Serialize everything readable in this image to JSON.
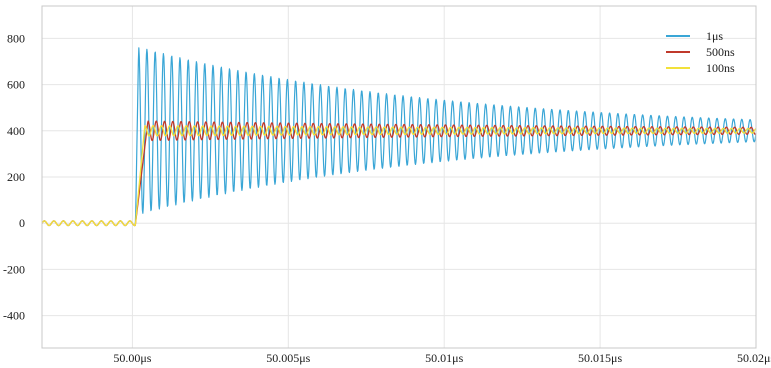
{
  "chart_data": {
    "type": "line",
    "title": "",
    "xlabel": "",
    "ylabel": "",
    "x_unit": "μs",
    "xlim": [
      49.9971,
      50.02
    ],
    "ylim": [
      -540,
      940
    ],
    "grid": true,
    "legend_position": "top-right",
    "x_ticks": [
      {
        "value": 50.0,
        "label": "50.00μs"
      },
      {
        "value": 50.005,
        "label": "50.005μs"
      },
      {
        "value": 50.01,
        "label": "50.01μs"
      },
      {
        "value": 50.015,
        "label": "50.015μs"
      },
      {
        "value": 50.02,
        "label": "50.02μs"
      }
    ],
    "y_ticks": [
      {
        "value": 800,
        "label": "800"
      },
      {
        "value": 600,
        "label": "600"
      },
      {
        "value": 400,
        "label": "400"
      },
      {
        "value": 200,
        "label": "200"
      },
      {
        "value": 0,
        "label": "0"
      },
      {
        "value": -200,
        "label": "-200"
      },
      {
        "value": -400,
        "label": "-400"
      }
    ],
    "series": [
      {
        "name": "1μs",
        "color": "#3aa6d6",
        "pre_step_level": 0,
        "pre_step_ripple_amplitude": 10,
        "step_start_x": 50.0001,
        "step_peak_x": 50.0002,
        "settled_level": 400,
        "first_peak": 770,
        "first_trough": 45,
        "oscillation_period": 0.000265,
        "end_peak": 450,
        "end_trough": 355
      },
      {
        "name": "500ns",
        "color": "#c0392b",
        "pre_step_level": 0,
        "pre_step_ripple_amplitude": 10,
        "step_start_x": 50.0001,
        "step_peak_x": 50.0005,
        "settled_level": 400,
        "first_peak": 445,
        "first_trough": 360,
        "oscillation_period": 0.000265,
        "end_peak": 415,
        "end_trough": 385
      },
      {
        "name": "100ns",
        "color": "#f2e13a",
        "pre_step_level": 0,
        "pre_step_ripple_amplitude": 10,
        "step_start_x": 50.0001,
        "step_peak_x": 50.0004,
        "settled_level": 400,
        "first_peak": 425,
        "first_trough": 380,
        "oscillation_period": 0.000265,
        "end_peak": 410,
        "end_trough": 390
      }
    ]
  }
}
